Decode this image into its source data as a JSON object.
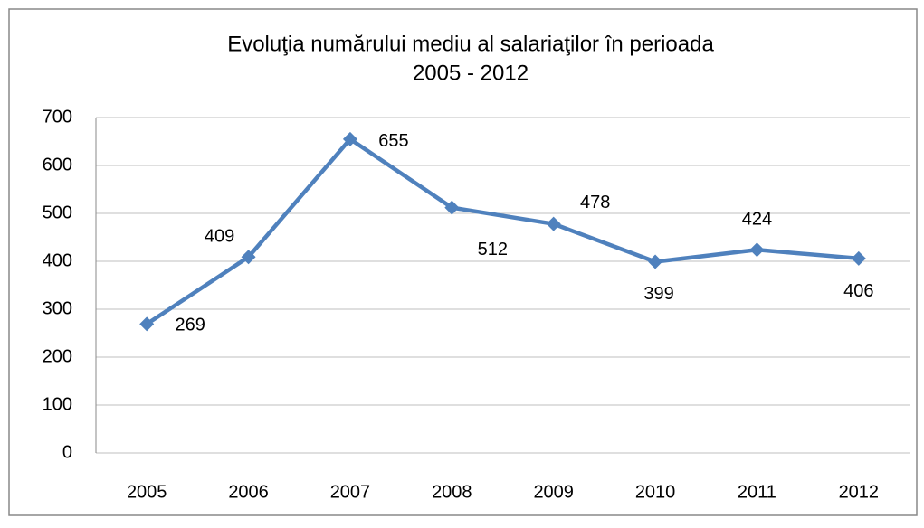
{
  "chart_data": {
    "type": "line",
    "title": [
      "Evoluţia numărului mediu al salariaţilor în perioada",
      "2005 - 2012"
    ],
    "categories": [
      "2005",
      "2006",
      "2007",
      "2008",
      "2009",
      "2010",
      "2011",
      "2012"
    ],
    "series": [
      {
        "color": "#4f81bd",
        "values": [
          269,
          409,
          655,
          512,
          478,
          399,
          424,
          406
        ]
      }
    ],
    "ylim": [
      0,
      700
    ],
    "yticks": [
      0,
      100,
      200,
      300,
      400,
      500,
      600,
      700
    ],
    "grid": true
  }
}
